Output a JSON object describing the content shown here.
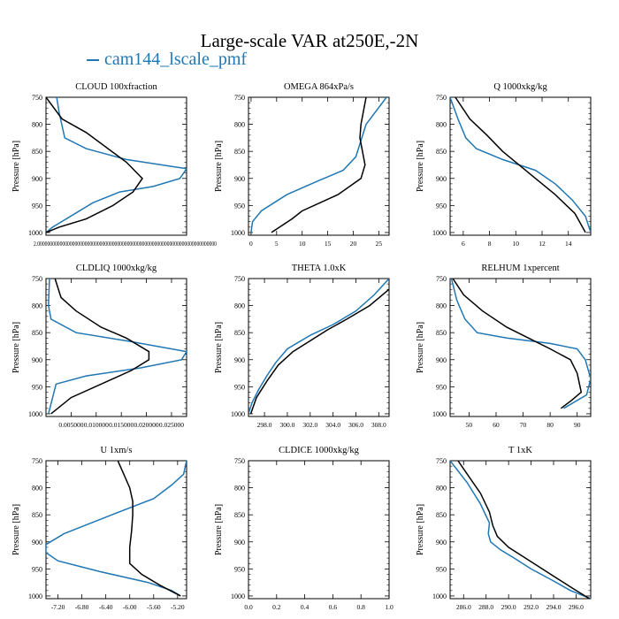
{
  "figure": {
    "title": "Large-scale VAR at250E,-2N",
    "legend": [
      {
        "name": "cam144_lscale_pmf",
        "color": "#1f77b4"
      }
    ],
    "colors": {
      "series_blue": "#1f77b4",
      "series_black": "#000000"
    }
  },
  "chart_data": [
    {
      "type": "line",
      "title": "CLOUD  100xfraction",
      "xlabel": "",
      "ylabel": "Pressure [hPa]",
      "xlim": [
        0,
        1.05
      ],
      "ylim": [
        750,
        1005
      ],
      "xtick_label_text": "2.000000000000000000000000000000000000000000000000000000000000000000000000",
      "xticks": [],
      "yticks": [
        750,
        800,
        850,
        900,
        950,
        1000
      ],
      "series": [
        {
          "color": "#1f77b4",
          "x": [
            0.08,
            0.1,
            0.14,
            0.3,
            0.6,
            1.05,
            1.0,
            0.8,
            0.55,
            0.35,
            0.05,
            0.0
          ],
          "y": [
            750,
            780,
            825,
            845,
            865,
            882,
            900,
            915,
            925,
            945,
            990,
            1000
          ]
        },
        {
          "color": "#000000",
          "x": [
            0.0,
            0.12,
            0.3,
            0.6,
            0.72,
            0.65,
            0.5,
            0.3,
            0.1,
            0.0
          ],
          "y": [
            750,
            790,
            815,
            870,
            900,
            925,
            950,
            975,
            990,
            1000
          ]
        }
      ]
    },
    {
      "type": "line",
      "title": "OMEGA  864xPa/s",
      "xlabel": "",
      "ylabel": "Pressure [hPa]",
      "xlim": [
        -0.5,
        27
      ],
      "ylim": [
        750,
        1005
      ],
      "xticks": [
        0,
        5,
        10,
        15,
        20,
        25
      ],
      "yticks": [
        750,
        800,
        850,
        900,
        950,
        1000
      ],
      "series": [
        {
          "color": "#1f77b4",
          "x": [
            26.5,
            22.5,
            21.5,
            20.5,
            18,
            13,
            7,
            2,
            0.3,
            0
          ],
          "y": [
            750,
            800,
            830,
            860,
            885,
            905,
            930,
            960,
            980,
            1000
          ]
        },
        {
          "color": "#000000",
          "x": [
            22.5,
            22.0,
            21.5,
            21.3,
            21.8,
            22.3,
            21.5,
            17,
            10,
            8,
            4
          ],
          "y": [
            750,
            775,
            800,
            825,
            850,
            875,
            900,
            930,
            960,
            975,
            1000
          ]
        }
      ]
    },
    {
      "type": "line",
      "title": "Q  1000xkg/kg",
      "xlabel": "",
      "ylabel": "Pressure [hPa]",
      "xlim": [
        5,
        15.7
      ],
      "ylim": [
        750,
        1005
      ],
      "xticks": [
        6,
        8,
        10,
        12,
        14
      ],
      "yticks": [
        750,
        800,
        850,
        900,
        950,
        1000
      ],
      "series": [
        {
          "color": "#1f77b4",
          "x": [
            5.0,
            5.6,
            6.2,
            7.0,
            9.0,
            11.5,
            13.0,
            14.3,
            15.3,
            15.7
          ],
          "y": [
            750,
            790,
            825,
            845,
            865,
            885,
            910,
            940,
            970,
            1000
          ]
        },
        {
          "color": "#000000",
          "x": [
            5.4,
            6.5,
            7.8,
            9.0,
            10.0,
            11.5,
            13.0,
            14.5,
            15.3
          ],
          "y": [
            750,
            790,
            820,
            850,
            870,
            900,
            930,
            965,
            1000
          ]
        }
      ]
    },
    {
      "type": "line",
      "title": "CLDLIQ  1000xkg/kg",
      "xlabel": "",
      "ylabel": "Pressure [hPa]",
      "xlim": [
        0,
        0.028
      ],
      "ylim": [
        750,
        1005
      ],
      "xticks": [
        0.005,
        0.01,
        0.015,
        0.02,
        0.025
      ],
      "xtick_labels": [
        "0.005000",
        "0.010000",
        "0.015000",
        "0.020000",
        "0.025000"
      ],
      "yticks": [
        750,
        800,
        850,
        900,
        950,
        1000
      ],
      "series": [
        {
          "color": "#1f77b4",
          "x": [
            0.0007,
            0.0005,
            0.001,
            0.006,
            0.016,
            0.028,
            0.027,
            0.019,
            0.008,
            0.002,
            0.0005
          ],
          "y": [
            750,
            800,
            825,
            850,
            865,
            885,
            900,
            915,
            930,
            945,
            1000
          ]
        },
        {
          "color": "#000000",
          "x": [
            0.0018,
            0.003,
            0.006,
            0.011,
            0.016,
            0.0205,
            0.0205,
            0.017,
            0.011,
            0.005,
            0.001
          ],
          "y": [
            750,
            785,
            810,
            840,
            860,
            885,
            900,
            920,
            945,
            970,
            1000
          ]
        }
      ]
    },
    {
      "type": "line",
      "title": "THETA  1.0xK",
      "xlabel": "",
      "ylabel": "Pressure [hPa]",
      "xlim": [
        296.6,
        308.9
      ],
      "ylim": [
        750,
        1005
      ],
      "xticks": [
        298,
        300,
        302,
        304,
        306,
        308
      ],
      "xtick_labels": [
        "298.0",
        "300.0",
        "302.0",
        "304.0",
        "306.0",
        "308.0"
      ],
      "yticks": [
        750,
        800,
        850,
        900,
        950,
        1000
      ],
      "series": [
        {
          "color": "#1f77b4",
          "x": [
            308.9,
            307.6,
            306.0,
            304.0,
            302.0,
            300.0,
            299.0,
            298.2,
            297.5,
            296.9,
            296.6
          ],
          "y": [
            750,
            780,
            810,
            835,
            855,
            880,
            905,
            930,
            955,
            980,
            1000
          ]
        },
        {
          "color": "#000000",
          "x": [
            308.9,
            307.2,
            305.2,
            303.5,
            302.0,
            300.5,
            299.2,
            298.2,
            297.3,
            296.8
          ],
          "y": [
            770,
            800,
            825,
            845,
            865,
            885,
            910,
            940,
            970,
            1000
          ]
        }
      ]
    },
    {
      "type": "line",
      "title": "RELHUM  1xpercent",
      "xlabel": "",
      "ylabel": "Pressure [hPa]",
      "xlim": [
        43,
        95
      ],
      "ylim": [
        750,
        1005
      ],
      "xticks": [
        50,
        60,
        70,
        80,
        90
      ],
      "yticks": [
        750,
        800,
        850,
        900,
        950,
        1000
      ],
      "series": [
        {
          "color": "#1f77b4",
          "x": [
            43.5,
            45.5,
            48.5,
            53.0,
            64.0,
            80.0,
            90.0,
            93.0,
            95.0,
            93.5,
            85.0
          ],
          "y": [
            750,
            790,
            825,
            850,
            860,
            870,
            880,
            900,
            935,
            965,
            990
          ]
        },
        {
          "color": "#000000",
          "x": [
            44.0,
            48.0,
            55.0,
            64.0,
            72.0,
            80.0,
            87.5,
            90.0,
            91.5,
            88.0,
            84.0
          ],
          "y": [
            750,
            780,
            810,
            840,
            860,
            880,
            900,
            925,
            960,
            975,
            990
          ]
        }
      ]
    },
    {
      "type": "line",
      "title": "U  1xm/s",
      "xlabel": "",
      "ylabel": "Pressure [hPa]",
      "xlim": [
        -7.4,
        -5.05
      ],
      "ylim": [
        750,
        1005
      ],
      "xticks": [
        -7.2,
        -6.8,
        -6.4,
        -6.0,
        -5.6,
        -5.2
      ],
      "xtick_labels": [
        "-7.20",
        "-6.80",
        "-6.40",
        "-6.00",
        "-5.60",
        "-5.20"
      ],
      "yticks": [
        750,
        800,
        850,
        900,
        950,
        1000
      ],
      "series": [
        {
          "color": "#1f77b4",
          "x": [
            -5.05,
            -5.1,
            -5.3,
            -5.6,
            -6.3,
            -7.1,
            -7.4,
            -7.4,
            -7.2,
            -6.5,
            -5.7,
            -5.3,
            -5.15
          ],
          "y": [
            750,
            775,
            795,
            820,
            850,
            885,
            905,
            920,
            935,
            955,
            975,
            990,
            1000
          ]
        },
        {
          "color": "#000000",
          "x": [
            -6.2,
            -6.1,
            -6.0,
            -5.95,
            -5.95,
            -5.97,
            -6.0,
            -6.0,
            -5.8,
            -5.5,
            -5.15
          ],
          "y": [
            750,
            775,
            800,
            825,
            850,
            880,
            910,
            940,
            960,
            980,
            1000
          ]
        }
      ]
    },
    {
      "type": "line",
      "title": "CLDICE  1000xkg/kg",
      "xlabel": "",
      "ylabel": "Pressure [hPa]",
      "xlim": [
        0,
        1.0
      ],
      "ylim": [
        750,
        1005
      ],
      "xticks": [
        0,
        0.2,
        0.4,
        0.6,
        0.8,
        1.0
      ],
      "xtick_labels": [
        "0.0",
        "0.2",
        "0.4",
        "0.6",
        "0.8",
        "1.0"
      ],
      "yticks": [
        750,
        800,
        850,
        900,
        950,
        1000
      ],
      "series": []
    },
    {
      "type": "line",
      "title": "T  1xK",
      "xlabel": "",
      "ylabel": "Pressure [hPa]",
      "xlim": [
        284.8,
        297.3
      ],
      "ylim": [
        750,
        1005
      ],
      "xticks": [
        286,
        288,
        290,
        292,
        294,
        296
      ],
      "xtick_labels": [
        "286.0",
        "288.0",
        "290.0",
        "292.0",
        "294.0",
        "296.0"
      ],
      "yticks": [
        750,
        800,
        850,
        900,
        950,
        1000
      ],
      "series": [
        {
          "color": "#1f77b4",
          "x": [
            284.8,
            286.3,
            287.5,
            288.3,
            288.2,
            288.4,
            289.3,
            290.5,
            292.0,
            293.8,
            295.5,
            297.3
          ],
          "y": [
            750,
            790,
            830,
            865,
            885,
            900,
            915,
            930,
            950,
            970,
            990,
            1005
          ]
        },
        {
          "color": "#000000",
          "x": [
            285.5,
            286.5,
            287.5,
            288.3,
            288.6,
            289.0,
            290.0,
            291.5,
            293.0,
            294.5,
            296.0,
            297.2
          ],
          "y": [
            750,
            780,
            810,
            845,
            870,
            890,
            910,
            930,
            950,
            970,
            990,
            1005
          ]
        }
      ]
    }
  ]
}
